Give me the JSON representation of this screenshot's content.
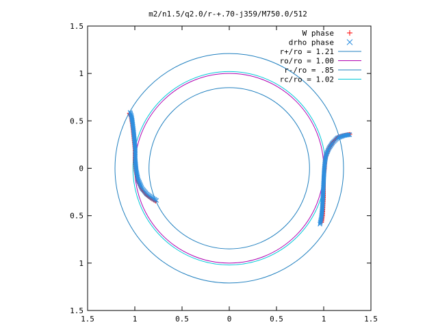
{
  "chart_data": {
    "type": "scatter",
    "title": "m2/n1.5/q2.0/r-+.70-j359/M750.0/512",
    "xlim": [
      -1.5,
      1.5
    ],
    "ylim": [
      -1.5,
      1.5
    ],
    "x_tick_labels": [
      "1.5",
      "1",
      "0.5",
      "0",
      "0.5",
      "1",
      "1.5"
    ],
    "y_tick_labels": [
      "1.5",
      "1",
      "0.5",
      "0",
      "0.5",
      "1",
      "1.5"
    ],
    "x_ticks": [
      -1.5,
      -1,
      -0.5,
      0,
      0.5,
      1,
      1.5
    ],
    "y_ticks": [
      1.5,
      1,
      0.5,
      0,
      -0.5,
      -1,
      -1.5
    ],
    "grid": false,
    "legend_position": "top-right",
    "series": [
      {
        "name": "W phase",
        "kind": "points",
        "marker": "+",
        "color": "#ff0000",
        "arms": [
          [
            [
              0.98,
              -0.57
            ],
            [
              0.99,
              -0.5
            ],
            [
              0.995,
              -0.4
            ],
            [
              1.0,
              -0.3
            ],
            [
              1.0,
              -0.2
            ],
            [
              1.0,
              -0.1
            ],
            [
              1.01,
              0.0
            ],
            [
              1.015,
              0.08
            ],
            [
              1.03,
              0.15
            ],
            [
              1.06,
              0.22
            ],
            [
              1.1,
              0.28
            ],
            [
              1.15,
              0.33
            ],
            [
              1.22,
              0.35
            ],
            [
              1.28,
              0.36
            ]
          ],
          [
            [
              -0.78,
              -0.35
            ],
            [
              -0.83,
              -0.32
            ],
            [
              -0.88,
              -0.28
            ],
            [
              -0.93,
              -0.22
            ],
            [
              -0.97,
              -0.13
            ],
            [
              -0.99,
              -0.03
            ],
            [
              -1.0,
              0.08
            ],
            [
              -1.0,
              0.2
            ],
            [
              -1.01,
              0.3
            ],
            [
              -1.02,
              0.4
            ],
            [
              -1.03,
              0.48
            ],
            [
              -1.04,
              0.54
            ],
            [
              -1.06,
              0.58
            ]
          ]
        ]
      },
      {
        "name": "drho phase",
        "kind": "points",
        "marker": "x",
        "color": "#2d8fe0",
        "arms": [
          [
            [
              0.96,
              -0.59
            ],
            [
              0.975,
              -0.52
            ],
            [
              0.985,
              -0.42
            ],
            [
              0.99,
              -0.32
            ],
            [
              0.995,
              -0.22
            ],
            [
              1.0,
              -0.12
            ],
            [
              1.005,
              -0.02
            ],
            [
              1.012,
              0.06
            ],
            [
              1.025,
              0.14
            ],
            [
              1.055,
              0.21
            ],
            [
              1.095,
              0.27
            ],
            [
              1.145,
              0.32
            ],
            [
              1.215,
              0.345
            ],
            [
              1.275,
              0.355
            ]
          ],
          [
            [
              -0.77,
              -0.34
            ],
            [
              -0.82,
              -0.31
            ],
            [
              -0.875,
              -0.27
            ],
            [
              -0.925,
              -0.21
            ],
            [
              -0.965,
              -0.12
            ],
            [
              -0.985,
              -0.02
            ],
            [
              -0.995,
              0.09
            ],
            [
              -0.995,
              0.21
            ],
            [
              -1.005,
              0.31
            ],
            [
              -1.015,
              0.41
            ],
            [
              -1.025,
              0.49
            ],
            [
              -1.035,
              0.55
            ],
            [
              -1.05,
              0.59
            ]
          ]
        ]
      },
      {
        "name": "r+/ro = 1.21",
        "kind": "circle",
        "r": 1.21,
        "color": "#1f7fbf"
      },
      {
        "name": "ro/ro = 1.00",
        "kind": "circle",
        "r": 1.0,
        "color": "#b000b0"
      },
      {
        "name": "r-/ro = .85",
        "kind": "circle",
        "r": 0.85,
        "color": "#1f7fbf"
      },
      {
        "name": "rc/ro = 1.02",
        "kind": "circle",
        "r": 1.02,
        "color": "#00c8d8"
      }
    ]
  }
}
